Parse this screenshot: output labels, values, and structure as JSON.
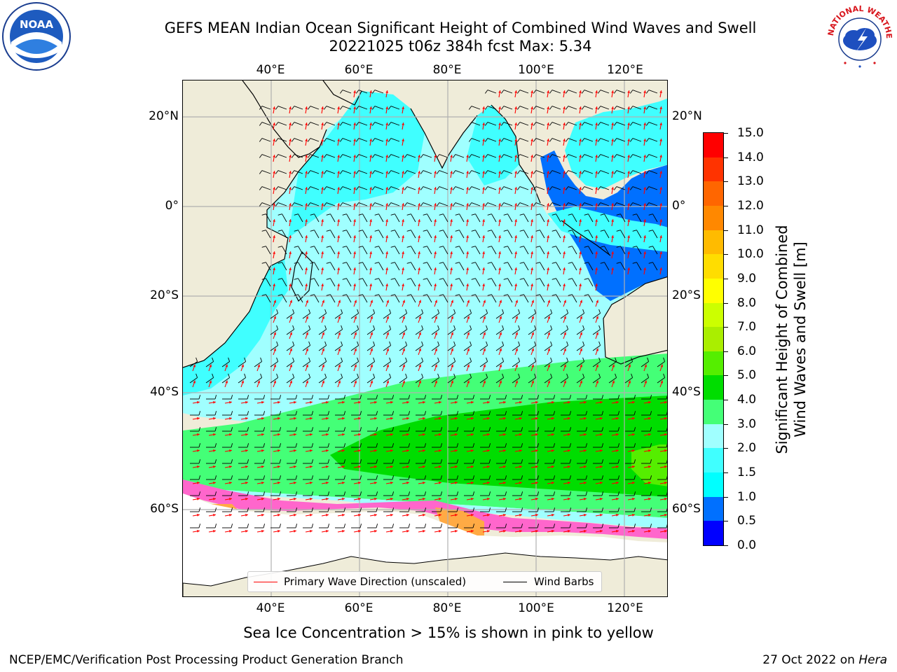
{
  "title": {
    "line1": "GEFS MEAN Indian Ocean Significant Height of Combined Wind Waves and Swell",
    "line2": "20221025 t06z 384h fcst   Max: 5.34"
  },
  "map": {
    "lon_ticks": [
      "40°E",
      "60°E",
      "80°E",
      "100°E",
      "120°E"
    ],
    "lat_ticks": [
      "20°N",
      "0°",
      "20°S",
      "40°S",
      "60°S"
    ],
    "lon_range": [
      20,
      130
    ],
    "lat_range": [
      -75,
      28
    ],
    "land_color": "#efecd9",
    "grid": true
  },
  "legend": {
    "wave_direction_label": "Primary Wave Direction (unscaled)",
    "wind_barbs_label": "Wind Barbs",
    "wave_direction_color": "#ff0000",
    "wind_barbs_color": "#000000"
  },
  "colorbar": {
    "title_line1": "Significant Height of Combined",
    "title_line2": "Wind Waves and Swell [m]",
    "ticks": [
      "0.0",
      "0.5",
      "1.0",
      "1.5",
      "2.0",
      "3.0",
      "4.0",
      "5.0",
      "6.0",
      "7.0",
      "8.0",
      "9.0",
      "10.0",
      "11.0",
      "12.0",
      "13.0",
      "14.0",
      "15.0"
    ],
    "colors": [
      "#0000ff",
      "#0070ff",
      "#00ffff",
      "#40ffff",
      "#a0ffff",
      "#44ff77",
      "#00dd00",
      "#55ee00",
      "#aaee00",
      "#ccff00",
      "#ffff00",
      "#ffdd00",
      "#ffbb00",
      "#ff8800",
      "#ff6600",
      "#ff3300",
      "#ff0000"
    ]
  },
  "ice_note": "Sea Ice Concentration > 15% is shown in pink to yellow",
  "footer": {
    "left": "NCEP/EMC/Verification Post Processing Product Generation Branch",
    "right_date": "27 Oct 2022 on",
    "right_host": "Hera"
  },
  "logos": {
    "noaa_text": "NOAA",
    "nws_text": "NATIONAL WEATHER SERVICE"
  }
}
